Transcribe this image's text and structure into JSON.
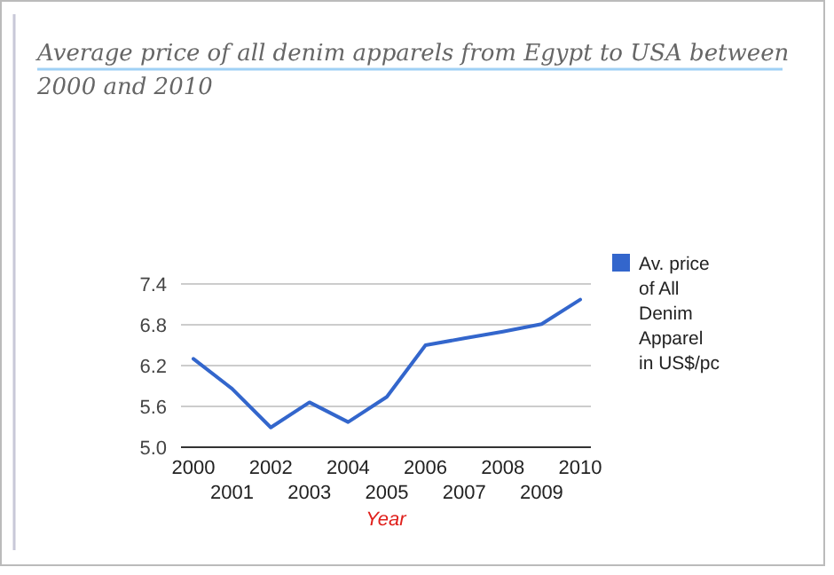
{
  "chart_data": {
    "type": "line",
    "title": "Average price of all denim apparels from Egypt to USA between 2000 and 2010",
    "xlabel": "Year",
    "categories": [
      "2000",
      "2001",
      "2002",
      "2003",
      "2004",
      "2005",
      "2006",
      "2007",
      "2008",
      "2009",
      "2010"
    ],
    "series": [
      {
        "name": "Av. price of All Denim Apparel in US$/pc",
        "color": "#3366cc",
        "values": [
          6.3,
          5.86,
          5.29,
          5.66,
          5.37,
          5.74,
          6.5,
          6.6,
          6.7,
          6.81,
          7.17
        ]
      }
    ],
    "ylim": [
      5.0,
      7.4
    ],
    "yticks": [
      {
        "value": 5.0,
        "label": "5.0"
      },
      {
        "value": 5.6,
        "label": "5.6"
      },
      {
        "value": 6.2,
        "label": "6.2"
      },
      {
        "value": 6.8,
        "label": "6.8"
      },
      {
        "value": 7.4,
        "label": "7.4"
      }
    ],
    "grid": "y",
    "legend": "right",
    "marker": "none",
    "line_style": "solid"
  }
}
